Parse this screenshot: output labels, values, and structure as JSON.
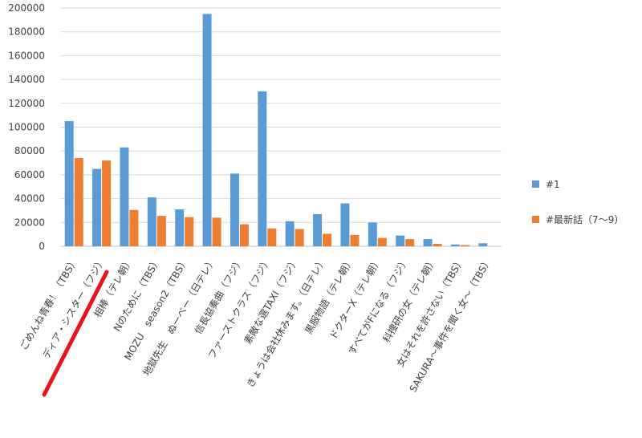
{
  "chart_data": {
    "type": "bar",
    "title": "",
    "xlabel": "",
    "ylabel": "",
    "ylim": [
      0,
      200000
    ],
    "yticks": [
      0,
      20000,
      40000,
      60000,
      80000,
      100000,
      120000,
      140000,
      160000,
      180000,
      200000
    ],
    "grid": true,
    "legend": "right",
    "categories": [
      "ごめんね青春！（TBS）",
      "ディア・シスター（フジ）",
      "相棒（テレ朝）",
      "Nのために（TBS）",
      "MOZU　season2（TBS）",
      "地獄先生　ぬーべー（日テレ）",
      "信長協奏曲（フジ）",
      "ファーストクラス（フジ）",
      "素敵な選TAXI（フジ）",
      "きょうは会社休みます。（日テレ）",
      "黒服物語（テレ朝）",
      "ドクターX（テレ朝）",
      "すべてがFになる（フジ）",
      "科捜研の女（テレ朝）",
      "女はそれを許さない（TBS）",
      "SAKURA～事件を聞く女～（TBS）"
    ],
    "series": [
      {
        "name": "#1",
        "color": "#5B9BD5",
        "values": [
          105000,
          65000,
          83000,
          41000,
          31000,
          195000,
          61000,
          130000,
          21000,
          27000,
          36000,
          20000,
          9000,
          6000,
          1500,
          2500
        ]
      },
      {
        "name": "#最新話（7～9）",
        "color": "#ED7D31",
        "values": [
          74000,
          72000,
          30500,
          25500,
          24500,
          24000,
          18500,
          15000,
          14500,
          10500,
          9500,
          7000,
          6000,
          2000,
          1000,
          0
        ]
      }
    ]
  },
  "highlight": {
    "color": "#E8141C"
  }
}
